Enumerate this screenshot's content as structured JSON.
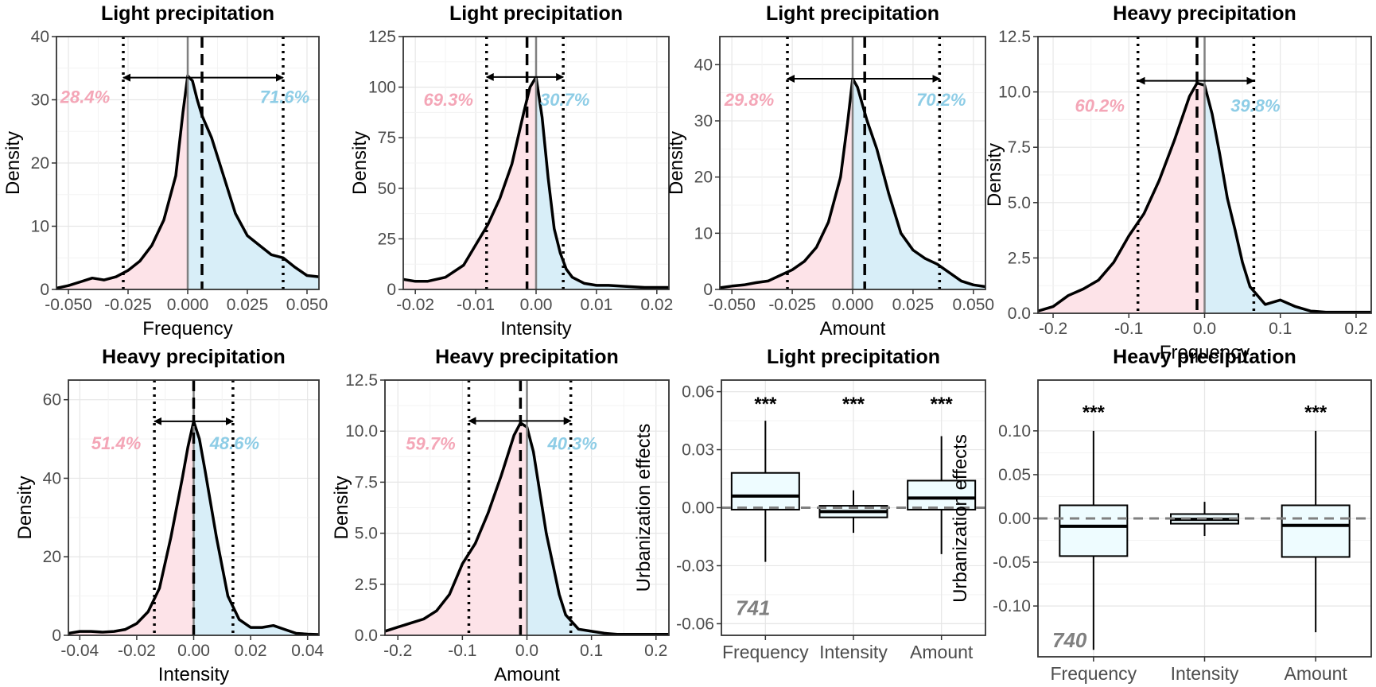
{
  "colors": {
    "negative": "#f4a6b7",
    "positive": "#8ecde6",
    "neg_fill": "#fde3e8",
    "pos_fill": "#d8eef8",
    "box_fill": "#eefcff"
  },
  "chart_data": [
    {
      "id": "p1",
      "type": "area",
      "title": "Light precipitation",
      "xlabel": "Frequency",
      "ylabel": "Density",
      "xlim": [
        -0.055,
        0.055
      ],
      "ylim": [
        0,
        40
      ],
      "xticks": [
        -0.05,
        -0.025,
        0,
        0.025,
        0.05
      ],
      "xtick_labels": [
        "-0.050",
        "-0.025",
        "0.000",
        "0.025",
        "0.050"
      ],
      "yticks": [
        0,
        10,
        20,
        30,
        40
      ],
      "ytick_labels": [
        "0",
        "10",
        "20",
        "30",
        "40"
      ],
      "x": [
        -0.055,
        -0.05,
        -0.045,
        -0.04,
        -0.035,
        -0.03,
        -0.025,
        -0.02,
        -0.015,
        -0.01,
        -0.005,
        -0.002,
        0,
        0.002,
        0.004,
        0.006,
        0.01,
        0.015,
        0.02,
        0.025,
        0.03,
        0.035,
        0.04,
        0.045,
        0.05,
        0.055
      ],
      "y": [
        0.2,
        0.6,
        1.2,
        1.8,
        1.5,
        2,
        3,
        4.5,
        7,
        11,
        18,
        28,
        33.8,
        33,
        30,
        27.5,
        24,
        18,
        12,
        8.5,
        7,
        5.5,
        5,
        3.5,
        2.2,
        2
      ],
      "zero": 0,
      "dashed": 0.006,
      "dotted": [
        -0.027,
        0.04
      ],
      "arrow_y": 33.5,
      "pct_neg": "28.4%",
      "pct_pos": "71.6%",
      "pct_y": 30.5
    },
    {
      "id": "p2",
      "type": "area",
      "title": "Light precipitation",
      "xlabel": "Intensity",
      "ylabel": "Density",
      "xlim": [
        -0.022,
        0.022
      ],
      "ylim": [
        0,
        125
      ],
      "xticks": [
        -0.02,
        -0.01,
        0,
        0.01,
        0.02
      ],
      "xtick_labels": [
        "-0.02",
        "-0.01",
        "0.00",
        "0.01",
        "0.02"
      ],
      "yticks": [
        0,
        25,
        50,
        75,
        100,
        125
      ],
      "ytick_labels": [
        "0",
        "25",
        "50",
        "75",
        "100",
        "125"
      ],
      "x": [
        -0.022,
        -0.02,
        -0.018,
        -0.015,
        -0.012,
        -0.01,
        -0.008,
        -0.006,
        -0.004,
        -0.002,
        -0.001,
        0,
        0.001,
        0.002,
        0.003,
        0.004,
        0.005,
        0.006,
        0.008,
        0.01,
        0.012,
        0.015,
        0.018,
        0.02,
        0.022
      ],
      "y": [
        5,
        4,
        4,
        6,
        12,
        22,
        32,
        45,
        62,
        88,
        100,
        105,
        85,
        55,
        30,
        18,
        10,
        6,
        3,
        2,
        2,
        1.5,
        1,
        1,
        1
      ],
      "zero": 0,
      "dashed": -0.0015,
      "dotted": [
        -0.0082,
        0.0045
      ],
      "arrow_y": 105,
      "pct_neg": "69.3%",
      "pct_pos": "30.7%",
      "pct_y": 94
    },
    {
      "id": "p3",
      "type": "area",
      "title": "Light precipitation",
      "xlabel": "Amount",
      "ylabel": "Density",
      "xlim": [
        -0.055,
        0.055
      ],
      "ylim": [
        0,
        45
      ],
      "xticks": [
        -0.05,
        -0.025,
        0,
        0.025,
        0.05
      ],
      "xtick_labels": [
        "-0.050",
        "-0.025",
        "0.000",
        "0.025",
        "0.050"
      ],
      "yticks": [
        0,
        10,
        20,
        30,
        40
      ],
      "ytick_labels": [
        "0",
        "10",
        "20",
        "30",
        "40"
      ],
      "x": [
        -0.055,
        -0.05,
        -0.045,
        -0.04,
        -0.035,
        -0.03,
        -0.025,
        -0.02,
        -0.015,
        -0.01,
        -0.005,
        -0.002,
        0,
        0.002,
        0.004,
        0.006,
        0.01,
        0.015,
        0.02,
        0.025,
        0.03,
        0.035,
        0.04,
        0.045,
        0.05,
        0.055
      ],
      "y": [
        0.3,
        0.6,
        0.8,
        1.2,
        1.5,
        2.5,
        3.5,
        5,
        7.5,
        12,
        20,
        30,
        37.5,
        36,
        33,
        30,
        25,
        17,
        10,
        7,
        5.5,
        4.5,
        3,
        1.5,
        0.8,
        0.5
      ],
      "zero": 0,
      "dashed": 0.005,
      "dotted": [
        -0.027,
        0.036
      ],
      "arrow_y": 37.5,
      "pct_neg": "29.8%",
      "pct_pos": "70.2%",
      "pct_y": 33.8
    },
    {
      "id": "p4",
      "type": "area",
      "title": "Heavy precipitation",
      "xlabel": "Frequency",
      "ylabel": "Density",
      "xlim": [
        -0.22,
        0.22
      ],
      "ylim": [
        0,
        12.5
      ],
      "xticks": [
        -0.2,
        -0.1,
        0,
        0.1,
        0.2
      ],
      "xtick_labels": [
        "-0.2",
        "-0.1",
        "0.0",
        "0.1",
        "0.2"
      ],
      "yticks": [
        0,
        2.5,
        5,
        7.5,
        10,
        12.5
      ],
      "ytick_labels": [
        "0.0",
        "2.5",
        "5.0",
        "7.5",
        "10.0",
        "12.5"
      ],
      "x": [
        -0.22,
        -0.2,
        -0.18,
        -0.16,
        -0.14,
        -0.12,
        -0.1,
        -0.08,
        -0.06,
        -0.04,
        -0.02,
        -0.01,
        0,
        0.01,
        0.02,
        0.03,
        0.04,
        0.05,
        0.06,
        0.08,
        0.1,
        0.12,
        0.14,
        0.16,
        0.18,
        0.2,
        0.22
      ],
      "y": [
        0.1,
        0.3,
        0.8,
        1.1,
        1.5,
        2.3,
        3.5,
        4.5,
        6,
        7.8,
        9.8,
        10.4,
        10.3,
        9,
        7.2,
        5.2,
        3.8,
        2.3,
        1.2,
        0.4,
        0.6,
        0.3,
        0.1,
        0.05,
        0.05,
        0.05,
        0.05
      ],
      "zero": 0,
      "dashed": -0.01,
      "dotted": [
        -0.088,
        0.065
      ],
      "arrow_y": 10.5,
      "pct_neg": "60.2%",
      "pct_pos": "39.8%",
      "pct_y": 9.4
    },
    {
      "id": "p5",
      "type": "area",
      "title": "Heavy precipitation",
      "xlabel": "Intensity",
      "ylabel": "Density",
      "xlim": [
        -0.044,
        0.044
      ],
      "ylim": [
        0,
        65
      ],
      "xticks": [
        -0.04,
        -0.02,
        0,
        0.02,
        0.04
      ],
      "xtick_labels": [
        "-0.04",
        "-0.02",
        "0.00",
        "0.02",
        "0.04"
      ],
      "yticks": [
        0,
        20,
        40,
        60
      ],
      "ytick_labels": [
        "0",
        "20",
        "40",
        "60"
      ],
      "x": [
        -0.044,
        -0.04,
        -0.036,
        -0.032,
        -0.028,
        -0.024,
        -0.02,
        -0.016,
        -0.012,
        -0.008,
        -0.004,
        -0.002,
        0,
        0.002,
        0.004,
        0.008,
        0.012,
        0.016,
        0.02,
        0.024,
        0.028,
        0.032,
        0.036,
        0.04,
        0.044
      ],
      "y": [
        0.5,
        1,
        1,
        0.8,
        1,
        1.5,
        3,
        6,
        12,
        25,
        40,
        48,
        54.5,
        50,
        42,
        25,
        10,
        4,
        2,
        2,
        2.5,
        1.5,
        0.5,
        0.3,
        0.2
      ],
      "zero": 0,
      "dashed": 0,
      "dotted": [
        -0.0138,
        0.0138
      ],
      "arrow_y": 54.5,
      "pct_neg": "51.4%",
      "pct_pos": "48.6%",
      "pct_y": 49
    },
    {
      "id": "p6",
      "type": "area",
      "title": "Heavy precipitation",
      "xlabel": "Amount",
      "ylabel": "Density",
      "xlim": [
        -0.22,
        0.22
      ],
      "ylim": [
        0,
        12.5
      ],
      "xticks": [
        -0.2,
        -0.1,
        0,
        0.1,
        0.2
      ],
      "xtick_labels": [
        "-0.2",
        "-0.1",
        "0.0",
        "0.1",
        "0.2"
      ],
      "yticks": [
        0,
        2.5,
        5,
        7.5,
        10,
        12.5
      ],
      "ytick_labels": [
        "0.0",
        "2.5",
        "5.0",
        "7.5",
        "10.0",
        "12.5"
      ],
      "x": [
        -0.22,
        -0.2,
        -0.18,
        -0.16,
        -0.14,
        -0.12,
        -0.1,
        -0.08,
        -0.06,
        -0.04,
        -0.02,
        -0.01,
        0,
        0.01,
        0.02,
        0.03,
        0.04,
        0.05,
        0.06,
        0.08,
        0.1,
        0.12,
        0.14,
        0.16,
        0.18,
        0.2,
        0.22
      ],
      "y": [
        0.2,
        0.4,
        0.6,
        0.8,
        1.2,
        2,
        3.5,
        4.5,
        6,
        7.8,
        9.8,
        10.4,
        10.2,
        9,
        7,
        5,
        3.5,
        2,
        1,
        0.3,
        0.2,
        0.1,
        0.05,
        0.05,
        0.05,
        0.05,
        0.05
      ],
      "zero": 0,
      "dashed": -0.01,
      "dotted": [
        -0.09,
        0.068
      ],
      "arrow_y": 10.5,
      "pct_neg": "59.7%",
      "pct_pos": "40.3%",
      "pct_y": 9.4
    },
    {
      "id": "b1",
      "type": "box",
      "title": "Light precipitation",
      "xlabel": "",
      "ylabel": "Urbanization effects",
      "ylim": [
        -0.066,
        0.066
      ],
      "yticks": [
        -0.06,
        -0.03,
        0,
        0.03,
        0.06
      ],
      "ytick_labels": [
        "-0.06",
        "-0.03",
        "0.00",
        "0.03",
        "0.06"
      ],
      "categories": [
        "Frequency",
        "Intensity",
        "Amount"
      ],
      "boxes": [
        {
          "whisker_low": -0.028,
          "q1": -0.001,
          "median": 0.006,
          "q3": 0.018,
          "whisker_high": 0.045,
          "sig": "***"
        },
        {
          "whisker_low": -0.013,
          "q1": -0.005,
          "median": -0.002,
          "q3": 0.001,
          "whisker_high": 0.009,
          "sig": "***"
        },
        {
          "whisker_low": -0.024,
          "q1": -0.001,
          "median": 0.005,
          "q3": 0.014,
          "whisker_high": 0.037,
          "sig": "***"
        }
      ],
      "sig_y": 0.0545,
      "n_label": "741",
      "n_y": -0.0515
    },
    {
      "id": "b2",
      "type": "box",
      "title": "Heavy precipitation",
      "xlabel": "",
      "ylabel": "Urbanization effects",
      "ylim": [
        -0.158,
        0.158
      ],
      "yticks": [
        -0.1,
        -0.05,
        0,
        0.05,
        0.1
      ],
      "ytick_labels": [
        "-0.10",
        "-0.05",
        "0.00",
        "0.05",
        "0.10"
      ],
      "categories": [
        "Frequency",
        "Intensity",
        "Amount"
      ],
      "boxes": [
        {
          "whisker_low": -0.15,
          "q1": -0.043,
          "median": -0.009,
          "q3": 0.015,
          "whisker_high": 0.1,
          "sig": "***"
        },
        {
          "whisker_low": -0.02,
          "q1": -0.006,
          "median": -0.001,
          "q3": 0.005,
          "whisker_high": 0.019,
          "sig": ""
        },
        {
          "whisker_low": -0.13,
          "q1": -0.044,
          "median": -0.008,
          "q3": 0.015,
          "whisker_high": 0.1,
          "sig": "***"
        }
      ],
      "sig_y": 0.123,
      "n_label": "740",
      "n_y": -0.138
    }
  ]
}
